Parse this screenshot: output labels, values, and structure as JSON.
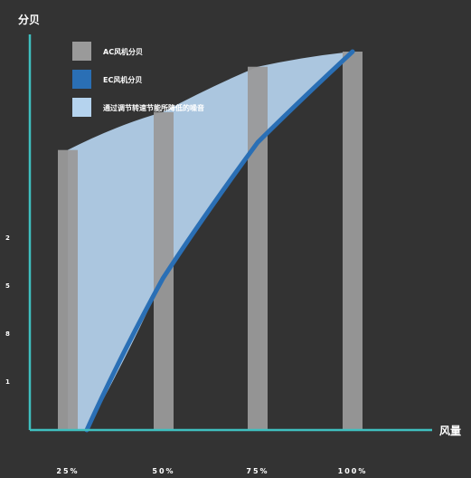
{
  "colors": {
    "background": "#333333",
    "axis": "#3fbfbf",
    "ac_bar": "#9a9a9a",
    "ec_line": "#2a6fb5",
    "saving_area": "#b5d3ee"
  },
  "chart_data": {
    "type": "bar",
    "ylabel": "分贝",
    "xlabel": "风量",
    "categories": [
      "25%",
      "50%",
      "75%",
      "100%"
    ],
    "yticks": [
      "2",
      "5",
      "8",
      "1"
    ],
    "ylim": [
      0,
      100
    ],
    "legend_position": "top-left",
    "legend": [
      {
        "label": "AC风机分贝",
        "kind": "bar",
        "color": "#9a9a9a"
      },
      {
        "label": "EC风机分贝",
        "kind": "line",
        "color": "#2a6fb5"
      },
      {
        "label": "通过调节转速节能所降低的噪音",
        "kind": "area",
        "color": "#b5d3ee"
      }
    ],
    "series": [
      {
        "name": "AC风机分贝",
        "type": "bar",
        "values": [
          74,
          84,
          96,
          100
        ]
      },
      {
        "name": "EC风机分贝",
        "type": "line",
        "x": [
          0.3,
          0.5,
          0.75,
          1.0
        ],
        "values": [
          0,
          40,
          76,
          100
        ]
      }
    ],
    "area": {
      "name": "通过调节转速节能所降低的噪音",
      "upper": {
        "x": [
          0.25,
          0.5,
          0.75,
          1.0
        ],
        "values": [
          74,
          84,
          96,
          100
        ]
      },
      "lower": {
        "x": [
          0.3,
          0.5,
          0.75,
          1.0
        ],
        "values": [
          0,
          40,
          76,
          100
        ]
      }
    }
  }
}
